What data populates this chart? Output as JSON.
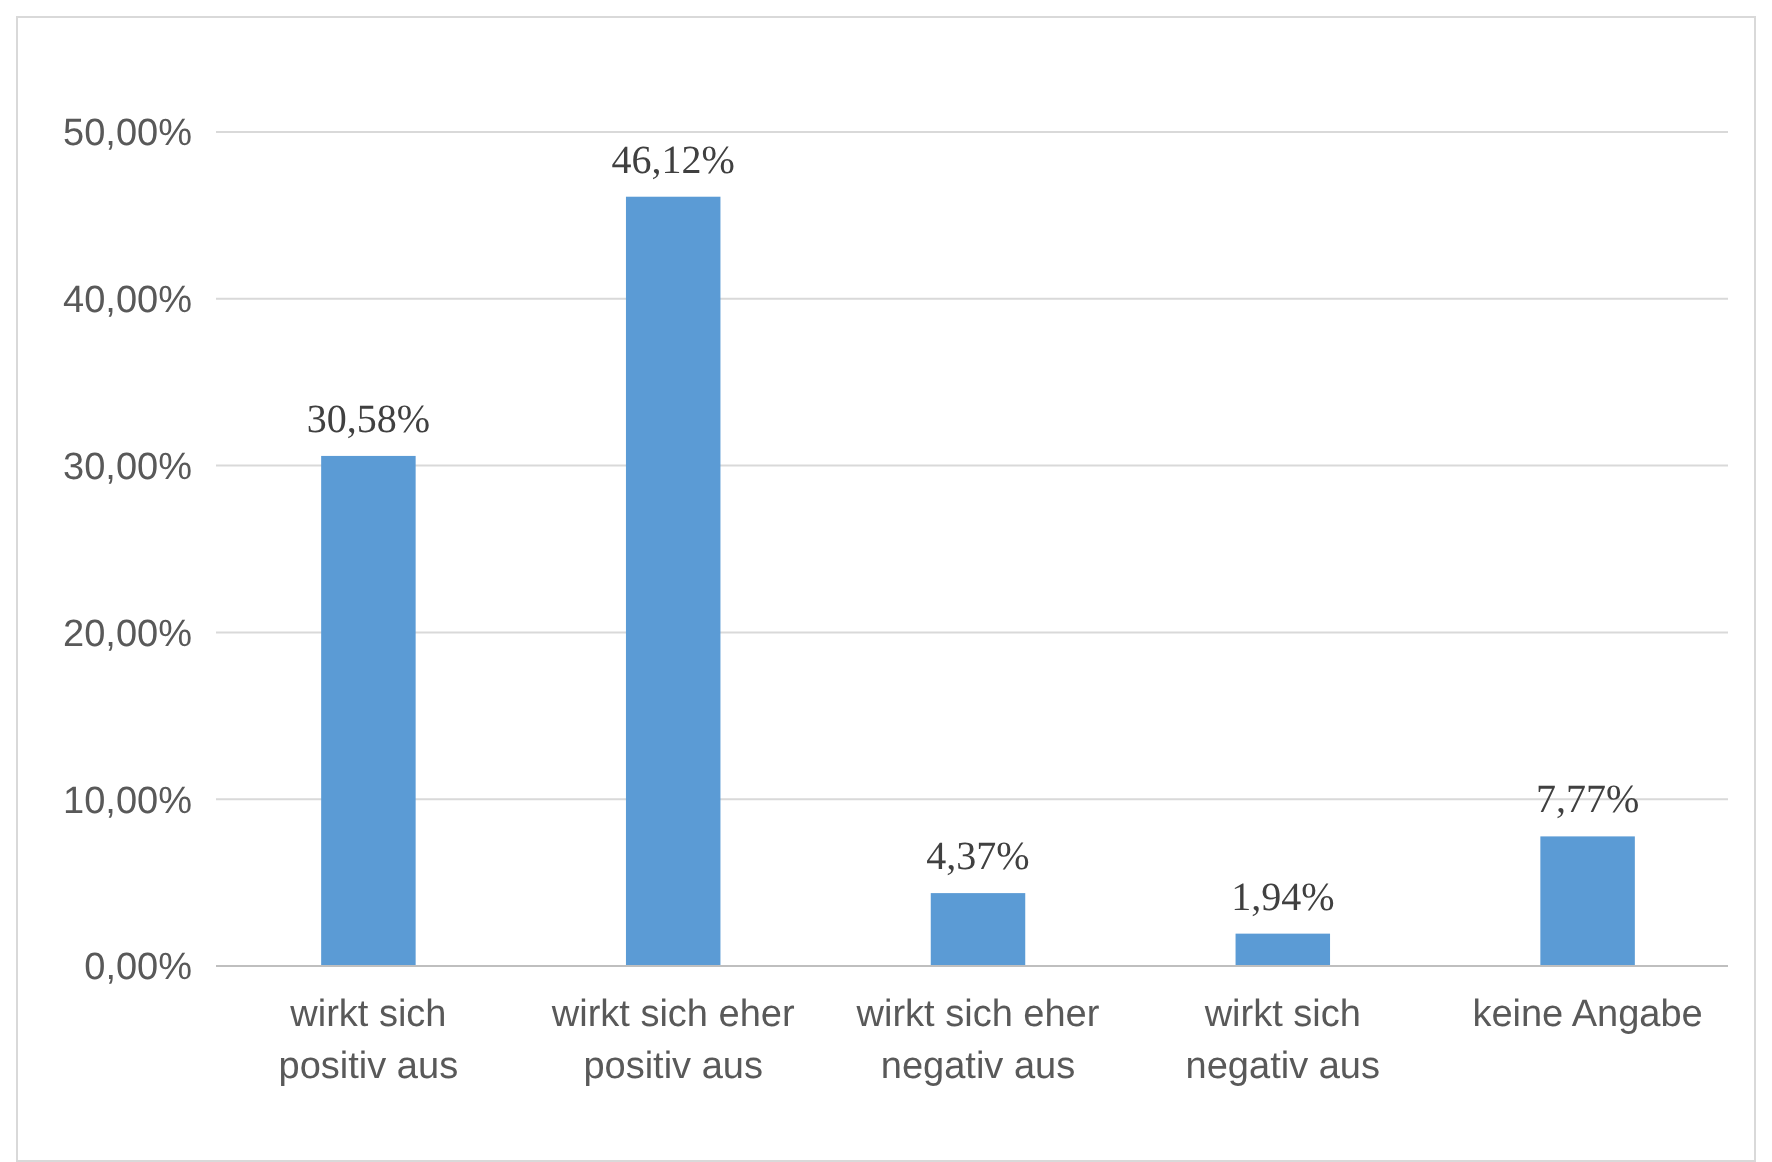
{
  "chart_data": {
    "type": "bar",
    "categories": [
      "wirkt sich\npositiv aus",
      "wirkt sich eher\npositiv aus",
      "wirkt sich eher\nnegativ aus",
      "wirkt sich\nnegativ aus",
      "keine Angabe"
    ],
    "values": [
      30.58,
      46.12,
      4.37,
      1.94,
      7.77
    ],
    "value_labels": [
      "30,58%",
      "46,12%",
      "4,37%",
      "1,94%",
      "7,77%"
    ],
    "color": "#5b9bd5",
    "ylim": [
      0,
      50
    ],
    "yticks": [
      {
        "value": 0,
        "label": "0,00%"
      },
      {
        "value": 10,
        "label": "10,00%"
      },
      {
        "value": 20,
        "label": "20,00%"
      },
      {
        "value": 30,
        "label": "30,00%"
      },
      {
        "value": 40,
        "label": "40,00%"
      },
      {
        "value": 50,
        "label": "50,00%"
      }
    ],
    "grid": "y"
  }
}
